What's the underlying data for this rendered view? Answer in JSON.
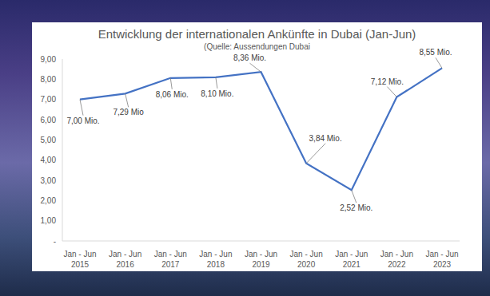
{
  "chart_data": {
    "type": "line",
    "title": "Entwicklung der internationalen Ankünfte in Dubai (Jan-Jun)",
    "subtitle": "(Quelle: Aussendungen Dubai",
    "categories": [
      "Jan - Jun 2015",
      "Jan - Jun 2016",
      "Jan - Jun 2017",
      "Jan - Jun 2018",
      "Jan - Jun 2019",
      "Jan - Jun 2020",
      "Jan - Jun 2021",
      "Jan - Jun 2022",
      "Jan - Jun 2023"
    ],
    "values": [
      7.0,
      7.29,
      8.06,
      8.1,
      8.36,
      3.84,
      2.52,
      7.12,
      8.55
    ],
    "value_labels": [
      "7,00 Mio.",
      "7,29 Mio",
      "8,06 Mio.",
      "8,10 Mio.",
      "8,36 Mio.",
      "3,84 Mio.",
      "2,52 Mio.",
      "7,12 Mio.",
      "8,55 Mio."
    ],
    "color": "#4472c4",
    "ylim": [
      0,
      9
    ],
    "yticks": [
      {
        "value": 0,
        "label": "-"
      },
      {
        "value": 1,
        "label": "1,00"
      },
      {
        "value": 2,
        "label": "2,00"
      },
      {
        "value": 3,
        "label": "3,00"
      },
      {
        "value": 4,
        "label": "4,00"
      },
      {
        "value": 5,
        "label": "5,00"
      },
      {
        "value": 6,
        "label": "6,00"
      },
      {
        "value": 7,
        "label": "7,00"
      },
      {
        "value": 8,
        "label": "8,00"
      },
      {
        "value": 9,
        "label": "9,00"
      }
    ],
    "grid": false,
    "data_labels": true
  }
}
